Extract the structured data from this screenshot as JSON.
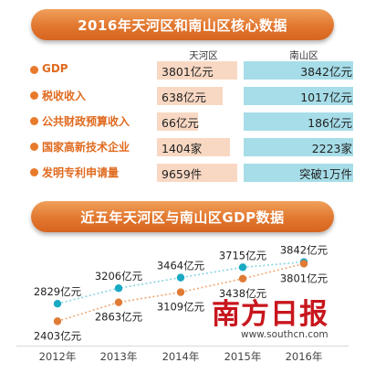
{
  "banners": {
    "top": "2016年天河区和南山区核心数据",
    "bottom": "近五年天河区与南山区GDP数据"
  },
  "columns": {
    "tianhe": "天河区",
    "nanshan": "南山区"
  },
  "colors": {
    "accent_orange": "#e87a2c",
    "label_orange": "#e06a1f",
    "tianhe_bar": "#f8d8c3",
    "nanshan_bar": "#a6dde8",
    "tianhe_line": "#f0a874",
    "nanshan_line": "#8ad4e2",
    "tianhe_marker": "#e07b35",
    "nanshan_marker": "#19a9c3",
    "watermark": "#c8161d"
  },
  "core_data": [
    {
      "label": "GDP",
      "tianhe": "3801亿元",
      "nanshan": "3842亿元",
      "tianhe_fill": 0.55,
      "nanshan_fill": 0.82
    },
    {
      "label": "税收收入",
      "tianhe": "638亿元",
      "nanshan": "1017亿元",
      "tianhe_fill": 0.45,
      "nanshan_fill": 0.82
    },
    {
      "label": "公共财政预算收入",
      "tianhe": "66亿元",
      "nanshan": "186亿元",
      "tianhe_fill": 0.28,
      "nanshan_fill": 0.82
    },
    {
      "label": "国家高新技术企业",
      "tianhe": "1404家",
      "nanshan": "2223家",
      "tianhe_fill": 0.5,
      "nanshan_fill": 0.82
    },
    {
      "label": "发明专利申请量",
      "tianhe": "9659件",
      "nanshan": "突破1万件",
      "tianhe_fill": 0.55,
      "nanshan_fill": 0.82
    }
  ],
  "chart_data": {
    "type": "line",
    "title": "近五年天河区与南山区GDP数据",
    "categories": [
      "2012年",
      "2013年",
      "2014年",
      "2015年",
      "2016年"
    ],
    "ylim": [
      2300,
      3900
    ],
    "series": [
      {
        "key": "nanshan",
        "values": [
          2829,
          3206,
          3464,
          3715,
          3842
        ],
        "labels": [
          "2829亿元",
          "3206亿元",
          "3464亿元",
          "3715亿元",
          "3842亿元"
        ]
      },
      {
        "key": "tianhe",
        "values": [
          2403,
          2863,
          3109,
          3438,
          3801
        ],
        "labels": [
          "2403亿元",
          "2863亿元",
          "3109亿元",
          "3438亿元",
          "3801亿元"
        ]
      }
    ]
  },
  "watermark": {
    "brand": "南方日报",
    "url": "www.southcn.com"
  }
}
